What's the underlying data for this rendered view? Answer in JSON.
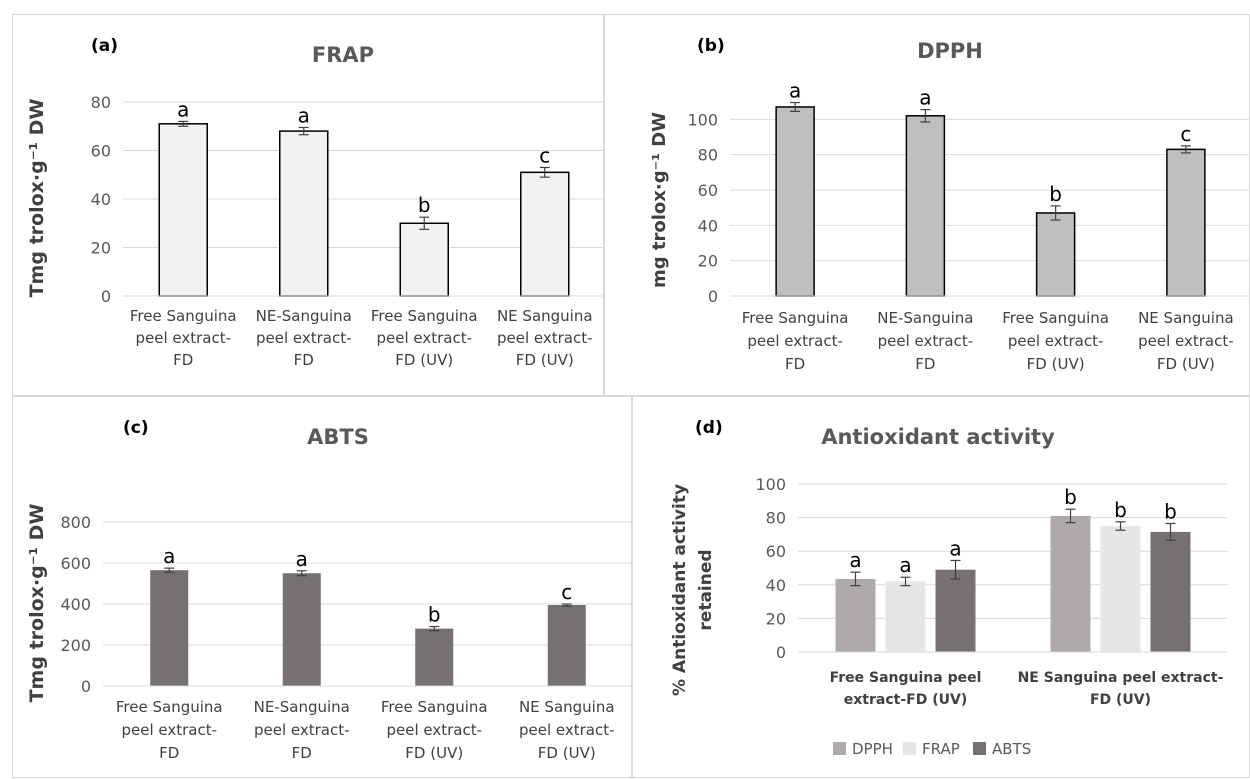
{
  "chart_data": [
    {
      "panel": "(a)",
      "type": "bar",
      "title": "FRAP",
      "ylabel": "Tmg trolox·g⁻¹ DW",
      "ylim": [
        0,
        80
      ],
      "yticks": [
        0,
        20,
        40,
        60,
        80
      ],
      "grid": true,
      "categories": [
        [
          "Free Sanguina",
          "peel extract-",
          "FD"
        ],
        [
          "NE-Sanguina",
          "peel extract-",
          "FD"
        ],
        [
          "Free Sanguina",
          "peel extract-",
          "FD  (UV)"
        ],
        [
          "NE Sanguina",
          "peel extract-",
          "FD  (UV)"
        ]
      ],
      "values": [
        71,
        68,
        30,
        51
      ],
      "errors": [
        1,
        1.5,
        2.5,
        2
      ],
      "letters": [
        "a",
        "a",
        "b",
        "c"
      ],
      "color": "#f2f2f2",
      "stroke": "#000000"
    },
    {
      "panel": "(b)",
      "type": "bar",
      "title": "DPPH",
      "ylabel": "mg trolox·g⁻¹ DW",
      "ylim": [
        0,
        120
      ],
      "yticks": [
        0,
        20,
        40,
        60,
        80,
        100
      ],
      "grid": true,
      "categories": [
        [
          "Free Sanguina",
          "peel extract-",
          "FD"
        ],
        [
          "NE-Sanguina",
          "peel extract-",
          "FD"
        ],
        [
          "Free Sanguina",
          "peel extract-",
          "FD  (UV)"
        ],
        [
          "NE Sanguina",
          "peel extract-",
          "FD  (UV)"
        ]
      ],
      "values": [
        107,
        102,
        47,
        83
      ],
      "errors": [
        2.5,
        3.5,
        4,
        2
      ],
      "letters": [
        "a",
        "a",
        "b",
        "c"
      ],
      "color": "#bfbfbf",
      "stroke": "#000000"
    },
    {
      "panel": "(c)",
      "type": "bar",
      "title": "ABTS",
      "ylabel": "Tmg trolox·g⁻¹ DW",
      "ylim": [
        0,
        800
      ],
      "yticks": [
        0,
        200,
        400,
        600,
        800
      ],
      "grid": true,
      "categories": [
        [
          "Free Sanguina",
          "peel extract-",
          "FD"
        ],
        [
          "NE-Sanguina",
          "peel extract-",
          "FD"
        ],
        [
          "Free Sanguina",
          "peel extract-",
          "FD  (UV)"
        ],
        [
          "NE Sanguina",
          "peel extract-",
          "FD  (UV)"
        ]
      ],
      "values": [
        565,
        550,
        280,
        395
      ],
      "errors": [
        10,
        12,
        10,
        5
      ],
      "letters": [
        "a",
        "a",
        "b",
        "c"
      ],
      "color": "#767171",
      "stroke": "none"
    },
    {
      "panel": "(d)",
      "type": "bar",
      "title": "Antioxidant activity",
      "ylabel": [
        "% Antioxidant activity",
        "retained"
      ],
      "ylim": [
        0,
        100
      ],
      "yticks": [
        0,
        20,
        40,
        60,
        80,
        100
      ],
      "grid": true,
      "legend_position": "bottom",
      "categories": [
        [
          "Free Sanguina peel",
          "extract-FD (UV)"
        ],
        [
          "NE Sanguina peel extract-",
          "FD (UV)"
        ]
      ],
      "series": [
        {
          "name": "DPPH",
          "color": "#aeaaaa",
          "values": [
            43.5,
            81
          ],
          "errors": [
            4,
            4
          ],
          "letters": [
            "a",
            "b"
          ]
        },
        {
          "name": "FRAP",
          "color": "#e7e6e6",
          "values": [
            42,
            75
          ],
          "errors": [
            2.5,
            2.5
          ],
          "letters": [
            "a",
            "b"
          ]
        },
        {
          "name": "ABTS",
          "color": "#767171",
          "values": [
            49,
            71.5
          ],
          "errors": [
            5.5,
            5
          ],
          "letters": [
            "a",
            "b"
          ]
        }
      ]
    }
  ]
}
